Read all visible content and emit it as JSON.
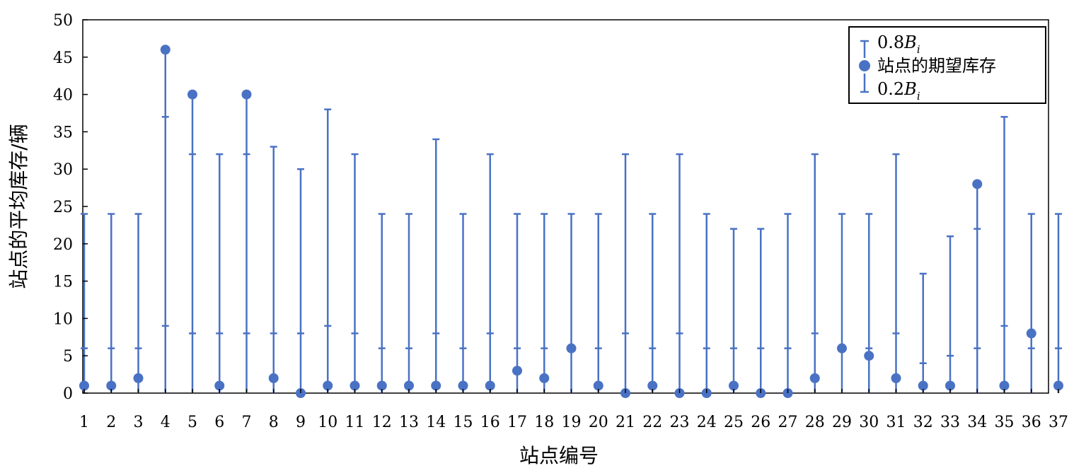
{
  "chart_data": {
    "type": "errorbar-scatter",
    "title": "",
    "xlabel": "站点编号",
    "ylabel": "站点的平均库存/辆",
    "ylim": [
      0,
      50
    ],
    "yticks": [
      "0",
      "5",
      "10",
      "15",
      "20",
      "25",
      "30",
      "35",
      "40",
      "45",
      "50"
    ],
    "categories": [
      "1",
      "2",
      "3",
      "4",
      "5",
      "6",
      "7",
      "8",
      "9",
      "10",
      "11",
      "12",
      "13",
      "14",
      "15",
      "16",
      "17",
      "18",
      "19",
      "20",
      "21",
      "22",
      "23",
      "24",
      "25",
      "26",
      "27",
      "28",
      "29",
      "30",
      "31",
      "32",
      "33",
      "34",
      "35",
      "36",
      "37"
    ],
    "series": [
      {
        "name": "0.8Bi",
        "values": [
          24,
          24,
          24,
          37,
          32,
          32,
          32,
          33,
          30,
          38,
          32,
          24,
          24,
          34,
          24,
          32,
          24,
          24,
          24,
          24,
          32,
          24,
          32,
          24,
          22,
          22,
          24,
          32,
          24,
          24,
          32,
          16,
          21,
          22,
          37,
          24,
          24
        ]
      },
      {
        "name": "站点的期望库存",
        "values": [
          1,
          1,
          2,
          46,
          40,
          1,
          40,
          2,
          0,
          1,
          1,
          1,
          1,
          1,
          1,
          1,
          3,
          2,
          6,
          1,
          0,
          1,
          0,
          0,
          1,
          0,
          0,
          2,
          6,
          5,
          2,
          1,
          1,
          28,
          1,
          8,
          1
        ]
      },
      {
        "name": "0.2Bi",
        "values": [
          6,
          6,
          6,
          9,
          8,
          8,
          8,
          8,
          8,
          9,
          8,
          6,
          6,
          8,
          6,
          8,
          6,
          6,
          6,
          6,
          8,
          6,
          8,
          6,
          6,
          6,
          6,
          8,
          6,
          6,
          8,
          4,
          5,
          6,
          9,
          6,
          6
        ]
      }
    ],
    "legend": {
      "placement": "top-right",
      "entries": [
        {
          "prefix": "0.8",
          "italic": "B",
          "sub": "i"
        },
        {
          "text": "站点的期望库存"
        },
        {
          "prefix": "0.2",
          "italic": "B",
          "sub": "i"
        }
      ]
    },
    "colors": {
      "series": "#4a72c4",
      "axis": "#000000"
    },
    "grid": false
  }
}
